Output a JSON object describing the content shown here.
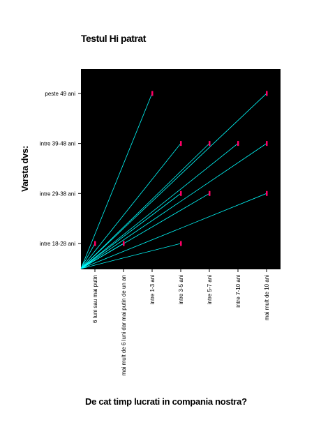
{
  "chart_data": {
    "type": "scatter",
    "title": "Testul Hi patrat",
    "xlabel": "De cat timp lucrati in compania nostra?",
    "ylabel": "Varsta dvs:",
    "x_categories": [
      "6 luni sau mai putin",
      "mai mult de 6 luni dar mai putin de un an",
      "intre 1-3 ani",
      "intre 3-5 ani",
      "intre 5-7 ani",
      "intre 7-10 ani",
      "mai mult de 10 ani"
    ],
    "y_categories": [
      "intre 18-28 ani",
      "intre 29-38 ani",
      "intre 39-48 ani",
      "peste 49 ani"
    ],
    "points": [
      {
        "x": "6 luni sau mai putin",
        "y": "intre 18-28 ani"
      },
      {
        "x": "mai mult de 6 luni dar mai putin de un an",
        "y": "intre 18-28 ani"
      },
      {
        "x": "intre 3-5 ani",
        "y": "intre 18-28 ani"
      },
      {
        "x": "intre 3-5 ani",
        "y": "intre 29-38 ani"
      },
      {
        "x": "intre 5-7 ani",
        "y": "intre 29-38 ani"
      },
      {
        "x": "mai mult de 10 ani",
        "y": "intre 29-38 ani"
      },
      {
        "x": "intre 3-5 ani",
        "y": "intre 39-48 ani"
      },
      {
        "x": "intre 5-7 ani",
        "y": "intre 39-48 ani"
      },
      {
        "x": "intre 7-10 ani",
        "y": "intre 39-48 ani"
      },
      {
        "x": "mai mult de 10 ani",
        "y": "intre 39-48 ani"
      },
      {
        "x": "intre 1-3 ani",
        "y": "peste 49 ani"
      },
      {
        "x": "mai mult de 10 ani",
        "y": "peste 49 ani"
      }
    ],
    "colors": {
      "background": "#000000",
      "line": "#00ffff",
      "marker": "#ff0066"
    },
    "grid": false,
    "legend": "none"
  }
}
